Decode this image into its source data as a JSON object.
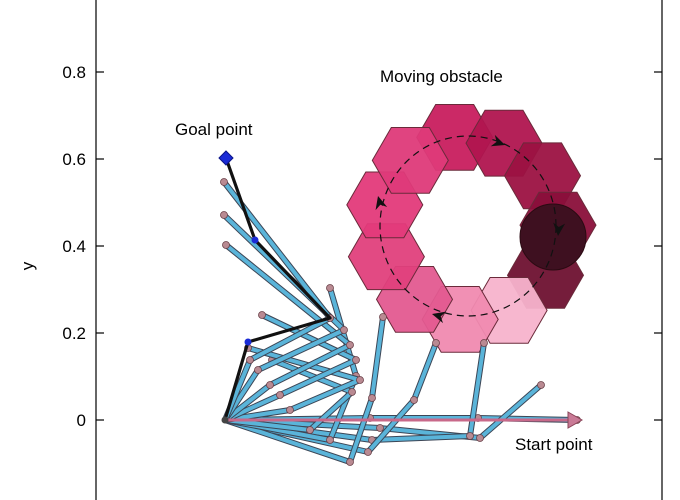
{
  "figure": {
    "ylabel": "y",
    "yticks": [
      {
        "value": 0.8,
        "label": "0.8"
      },
      {
        "value": 0.6,
        "label": "0.6"
      },
      {
        "value": 0.4,
        "label": "0.4"
      },
      {
        "value": 0.2,
        "label": "0.2"
      },
      {
        "value": 0,
        "label": "0"
      }
    ],
    "ylim": [
      -0.2,
      1.0
    ]
  },
  "annotations": {
    "moving_obstacle": "Moving obstacle",
    "goal_point": "Goal point",
    "start_point": "Start point"
  },
  "colors": {
    "arm_blue": "#5ab4d9",
    "arm_outline": "#3c4656",
    "final_arm": "#111111",
    "joint": "#b98a92",
    "goal_marker": "#1a2bd6",
    "obstacle_dark": "#3e1020",
    "obstacle_light": "#f7b3cc",
    "obstacle_mid": "#e0327a"
  }
}
